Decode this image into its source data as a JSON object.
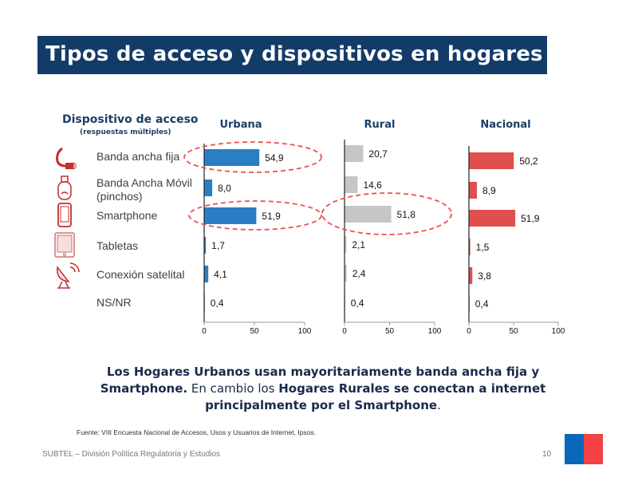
{
  "title": "Tipos de acceso y dispositivos en hogares",
  "category_header": {
    "title": "Dispositivo de acceso",
    "subtitle": "(respuestas múltiples)"
  },
  "categories": [
    {
      "label": "Banda ancha fija",
      "icon": "ethernet-cable-icon"
    },
    {
      "label": "Banda Ancha Móvil (pinchos)",
      "icon": "usb-modem-icon"
    },
    {
      "label": "Smartphone",
      "icon": "smartphone-icon"
    },
    {
      "label": "Tabletas",
      "icon": "tablet-icon"
    },
    {
      "label": "Conexión satelital",
      "icon": "satellite-dish-icon"
    },
    {
      "label": "NS/NR",
      "icon": ""
    }
  ],
  "chart_data": [
    {
      "type": "bar",
      "orientation": "horizontal",
      "title": "Urbana",
      "categories": [
        "Banda ancha fija",
        "Banda Ancha Móvil (pinchos)",
        "Smartphone",
        "Tabletas",
        "Conexión satelital",
        "NS/NR"
      ],
      "values": [
        54.9,
        8.0,
        51.9,
        1.7,
        4.1,
        0.4
      ],
      "value_labels": [
        "54,9",
        "8,0",
        "51,9",
        "1,7",
        "4,1",
        "0,4"
      ],
      "xlim": [
        0,
        100
      ],
      "ticks": [
        "0",
        "50",
        "100"
      ],
      "color": "#2a7fc4",
      "highlighted": [
        "Banda ancha fija",
        "Smartphone"
      ]
    },
    {
      "type": "bar",
      "orientation": "horizontal",
      "title": "Rural",
      "categories": [
        "Banda ancha fija",
        "Banda Ancha Móvil (pinchos)",
        "Smartphone",
        "Tabletas",
        "Conexión satelital",
        "NS/NR"
      ],
      "values": [
        20.7,
        14.6,
        51.8,
        2.1,
        2.4,
        0.4
      ],
      "value_labels": [
        "20,7",
        "14,6",
        "51,8",
        "2,1",
        "2,4",
        "0,4"
      ],
      "xlim": [
        0,
        100
      ],
      "ticks": [
        "0",
        "50",
        "100"
      ],
      "color": "#c6c6c6",
      "highlighted": [
        "Smartphone"
      ]
    },
    {
      "type": "bar",
      "orientation": "horizontal",
      "title": "Nacional",
      "categories": [
        "Banda ancha fija",
        "Banda Ancha Móvil (pinchos)",
        "Smartphone",
        "Tabletas",
        "Conexión satelital",
        "NS/NR"
      ],
      "values": [
        50.2,
        8.9,
        51.9,
        1.5,
        3.8,
        0.4
      ],
      "value_labels": [
        "50,2",
        "8,9",
        "51,9",
        "1,5",
        "3,8",
        "0,4"
      ],
      "xlim": [
        0,
        100
      ],
      "ticks": [
        "0",
        "50",
        "100"
      ],
      "color": "#e04e4e",
      "highlighted": []
    }
  ],
  "highlight_color": "#f05050",
  "summary": {
    "p1": "Los Hogares Urbanos usan mayoritariamente banda ancha fija y Smartphone.",
    "p2": " En cambio los ",
    "p3": "Hogares Rurales se conectan a internet principalmente por el Smartphone",
    "p4": "."
  },
  "source": "Fuente: VIII Encuesta Nacional de Accesos, Usos y Usuarios de Internet, Ipsos.",
  "footer": "SUBTEL – División Política Regulatoria y Estudios",
  "page_number": "10",
  "flag_colors": [
    "#0a68b8",
    "#f44144"
  ]
}
